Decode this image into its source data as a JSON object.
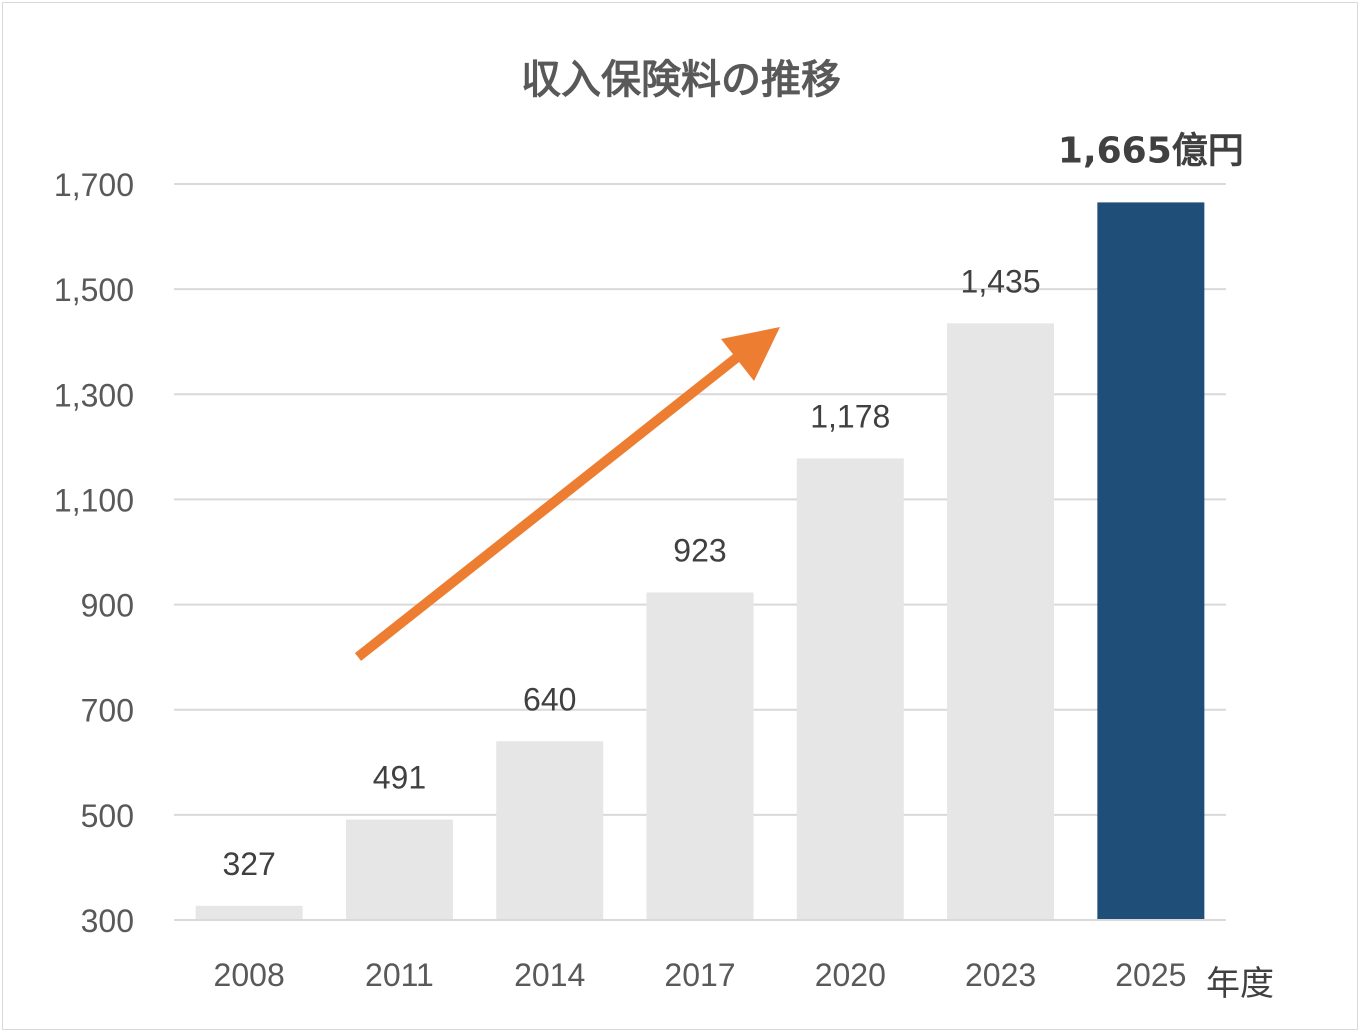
{
  "chart_data": {
    "type": "bar",
    "title": "収入保険料の推移",
    "categories": [
      "2008",
      "2011",
      "2014",
      "2017",
      "2020",
      "2023",
      "2025"
    ],
    "values": [
      327,
      491,
      640,
      923,
      1178,
      1435,
      1665
    ],
    "data_labels": [
      "327",
      "491",
      "640",
      "923",
      "1,178",
      "1,435",
      "1,665億円"
    ],
    "x_unit_label": "年度",
    "ylim": [
      300,
      1700
    ],
    "yticks": [
      "300",
      "500",
      "700",
      "900",
      "1,100",
      "1,300",
      "1,500",
      "1,700"
    ],
    "ytick_values": [
      300,
      500,
      700,
      900,
      1100,
      1300,
      1500,
      1700
    ],
    "grid": true,
    "highlight_index": 6,
    "colors": {
      "bar": "#e6e6e6",
      "bar_highlight": "#1f4e79",
      "grid": "#d9d9d9",
      "arrow": "#ed7d31"
    },
    "annotation": "trend-up-arrow"
  }
}
